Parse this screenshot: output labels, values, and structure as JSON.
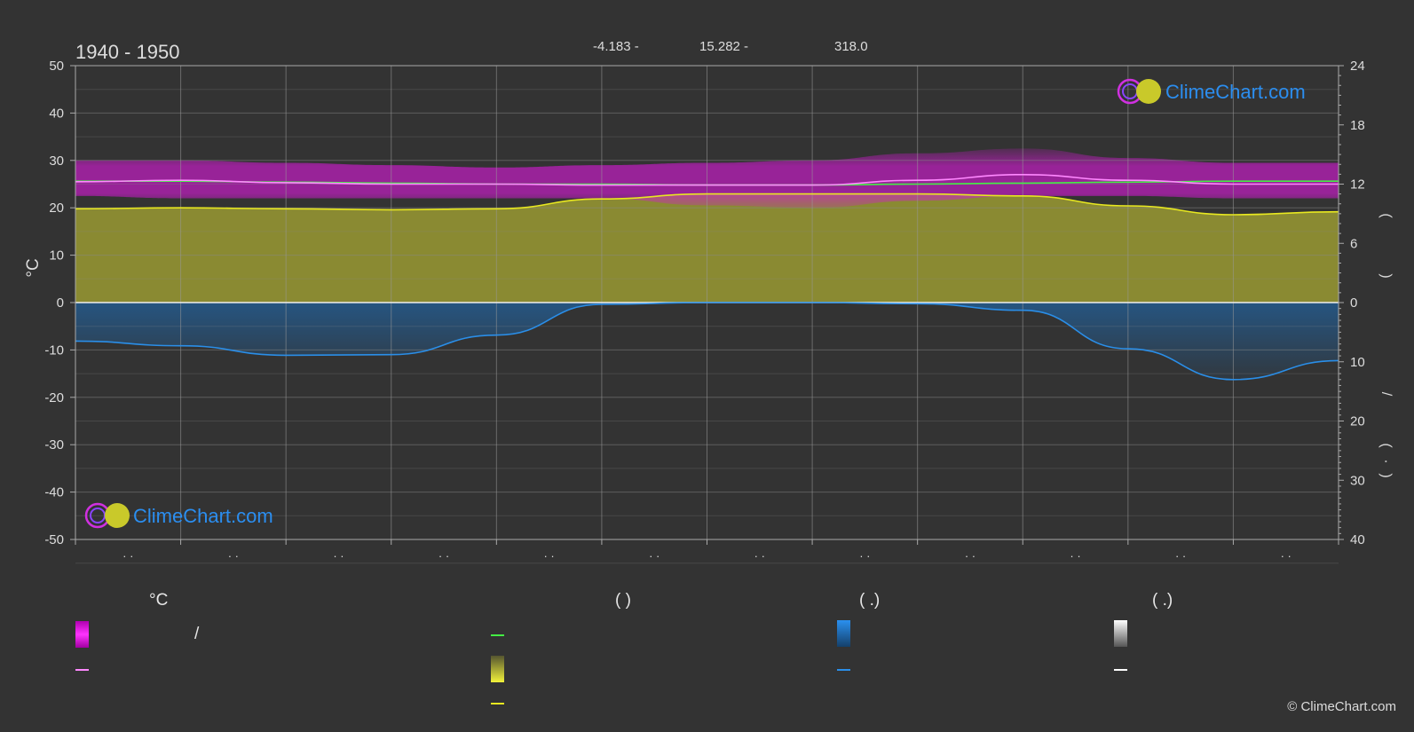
{
  "header": {
    "period": "1940 - 1950",
    "stat1": "-4.183 -",
    "stat2": "15.282 -",
    "stat3": "318.0"
  },
  "logo_text": "ClimeChart.com",
  "copyright": "© ClimeChart.com",
  "left_axis_unit": "°C",
  "right_axis_marks": [
    "(",
    ")",
    "(",
    ")",
    "/",
    "(",
    "·",
    ")"
  ],
  "legend": {
    "col1_head": "°C",
    "col1_slash": "/",
    "col2_head": "(            )",
    "col3_head": "(   .)",
    "col4_head": "(   .)"
  },
  "colors": {
    "background": "#333333",
    "temp_band": "#d21ad2",
    "temp_line": "#ff88ff",
    "daylight_line": "#44ee44",
    "sunshine_band": "#9a9a32",
    "sunshine_line": "#e8e820",
    "rain_band": "#1a74c8",
    "rain_line": "#2a8ee8",
    "snow": "#dddddd",
    "brand": "#2b8ef0"
  },
  "chart_data": {
    "type": "area",
    "x": [
      0,
      1,
      2,
      3,
      4,
      5,
      6,
      7,
      8,
      9,
      10,
      11,
      12
    ],
    "month_tick_labels": [
      "· ·",
      "· ·",
      "· ·",
      "· ·",
      "· ·",
      "· ·",
      "· ·",
      "· ·",
      "· ·",
      "· ·",
      "· ·",
      "· ·"
    ],
    "xlim": [
      0,
      12
    ],
    "ylim_left": [
      -50,
      50
    ],
    "left_ticks": [
      50,
      40,
      30,
      20,
      10,
      0,
      -10,
      -20,
      -30,
      -40,
      -50
    ],
    "right_top_ticks": [
      24,
      18,
      12,
      6,
      0
    ],
    "right_bottom_ticks": [
      10,
      20,
      30,
      40
    ],
    "grid": true,
    "series": [
      {
        "key": "temp_mean",
        "unit": "°C",
        "axis": "left",
        "values": [
          25.5,
          25.8,
          25.3,
          25.0,
          25.0,
          24.8,
          24.8,
          24.8,
          25.8,
          27.0,
          25.8,
          25.0,
          25.0
        ]
      },
      {
        "key": "temp_band_max",
        "unit": "°C",
        "axis": "left",
        "values": [
          30.0,
          30.0,
          29.5,
          29.0,
          28.5,
          29.0,
          29.5,
          30.0,
          31.5,
          32.5,
          30.5,
          29.5,
          29.5
        ]
      },
      {
        "key": "temp_band_min",
        "unit": "°C",
        "axis": "left",
        "values": [
          22.5,
          22.0,
          22.0,
          22.0,
          22.0,
          22.0,
          20.5,
          20.0,
          21.5,
          22.5,
          22.5,
          22.0,
          22.0
        ]
      },
      {
        "key": "daylight",
        "unit": "h",
        "axis": "right",
        "values": [
          12.3,
          12.3,
          12.2,
          12.1,
          12.0,
          12.0,
          11.9,
          11.9,
          12.0,
          12.1,
          12.2,
          12.3,
          12.3
        ]
      },
      {
        "key": "sunshine",
        "unit": "h",
        "axis": "right",
        "values": [
          9.5,
          9.6,
          9.5,
          9.4,
          9.5,
          10.5,
          11.0,
          11.0,
          11.0,
          10.8,
          9.8,
          8.9,
          9.2
        ]
      },
      {
        "key": "precipitation",
        "unit": "mm",
        "axis": "right-bottom",
        "values": [
          6.5,
          7.3,
          8.9,
          8.8,
          5.5,
          0.3,
          0.0,
          0.0,
          0.2,
          1.3,
          7.8,
          13.0,
          9.8
        ]
      }
    ]
  }
}
